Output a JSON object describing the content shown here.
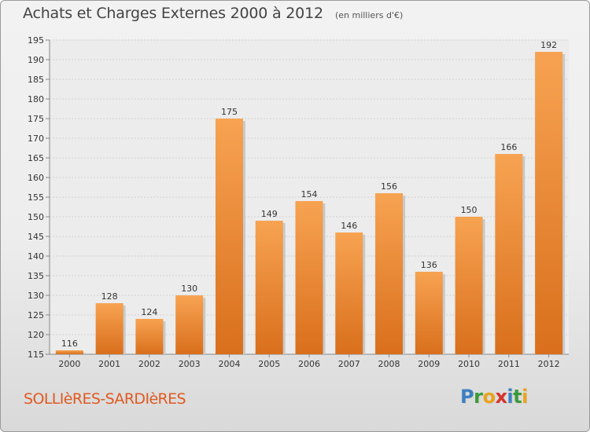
{
  "chart_data": {
    "type": "bar",
    "title": "Achats et Charges Externes 2000 à 2012",
    "subtitle": "(en milliers d'€)",
    "categories": [
      "2000",
      "2001",
      "2002",
      "2003",
      "2004",
      "2005",
      "2006",
      "2007",
      "2008",
      "2009",
      "2010",
      "2011",
      "2012"
    ],
    "values": [
      116,
      128,
      124,
      130,
      175,
      149,
      154,
      146,
      156,
      136,
      150,
      166,
      192
    ],
    "ylim": [
      115,
      195
    ],
    "yticks": [
      115,
      120,
      125,
      130,
      135,
      140,
      145,
      150,
      155,
      160,
      165,
      170,
      175,
      180,
      185,
      190,
      195
    ],
    "grid": true,
    "bar_color": "#e8842f"
  },
  "location": "SOLLIèRES-SARDIèRES",
  "logo": {
    "letters": [
      "P",
      "r",
      "o",
      "x",
      "i",
      "t",
      "i"
    ],
    "colors": [
      "#3d7fc1",
      "#3d9a3a",
      "#e9a31c",
      "#d8322a",
      "#3d7fc1",
      "#3d9a3a",
      "#e9a31c"
    ]
  }
}
